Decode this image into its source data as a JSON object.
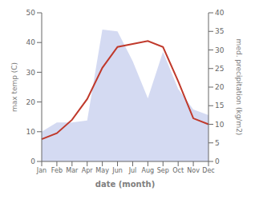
{
  "chart_data": {
    "type": "line",
    "xlabel": "date (month)",
    "ylabel": "max temp (C)",
    "y2label": "med. precipitation (kg/m2)",
    "categories": [
      "Jan",
      "Feb",
      "Mar",
      "Apr",
      "May",
      "Jun",
      "Jul",
      "Aug",
      "Sep",
      "Oct",
      "Nov",
      "Dec"
    ],
    "series": [
      {
        "type": "area",
        "axis": "y2",
        "color": "#b0bce8",
        "values": [
          8.0,
          10.5,
          10.5,
          11.0,
          35.5,
          35.0,
          27.0,
          17.0,
          29.5,
          19.5,
          14.0,
          12.5
        ]
      },
      {
        "type": "line",
        "color": "#c0392b",
        "values": [
          7.5,
          9.5,
          14.0,
          21.0,
          31.5,
          38.5,
          39.5,
          40.5,
          38.5,
          27.0,
          14.5,
          12.5
        ]
      }
    ],
    "ylim": [
      0,
      50
    ],
    "yticks": [
      0,
      10,
      20,
      30,
      40,
      50
    ],
    "y2lim": [
      0,
      40
    ],
    "y2ticks": [
      0,
      5,
      10,
      15,
      20,
      25,
      30,
      35,
      40
    ],
    "grid": false
  }
}
